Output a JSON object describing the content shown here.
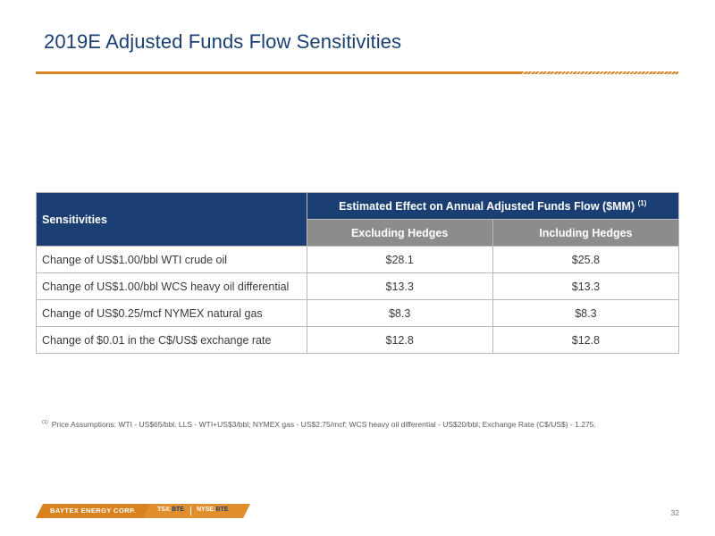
{
  "title": "2019E Adjusted Funds Flow Sensitivities",
  "table": {
    "header_label": "Sensitivities",
    "group_header": "Estimated Effect on Annual Adjusted Funds Flow ($MM)",
    "group_header_note": "(1)",
    "sub_headers": [
      "Excluding Hedges",
      "Including Hedges"
    ],
    "rows": [
      {
        "label": "Change of US$1.00/bbl WTI crude oil",
        "excluding": "$28.1",
        "including": "$25.8"
      },
      {
        "label": "Change of US$1.00/bbl WCS heavy oil differential",
        "excluding": "$13.3",
        "including": "$13.3"
      },
      {
        "label": "Change of US$0.25/mcf NYMEX natural gas",
        "excluding": "$8.3",
        "including": "$8.3"
      },
      {
        "label": "Change of $0.01 in the C$/US$ exchange rate",
        "excluding": "$12.8",
        "including": "$12.8"
      }
    ]
  },
  "footnote": {
    "marker": "(1)",
    "text": "Price Assumptions:  WTI - US$65/bbl. LLS - WTI+US$3/bbl; NYMEX gas - US$2.75/mcf; WCS heavy oil differential - US$20/bbl; Exchange Rate (C$/US$) - 1.275."
  },
  "footer": {
    "company": "BAYTEX ENERGY CORP.",
    "tsx_prefix": "TSX:",
    "tsx_symbol": "BTE",
    "nyse_prefix": "NYSE:",
    "nyse_symbol": "BTE",
    "page_number": "32"
  },
  "colors": {
    "brand_navy": "#1b3f73",
    "accent_orange": "#d9801f",
    "subheader_gray": "#8c8c8c"
  }
}
